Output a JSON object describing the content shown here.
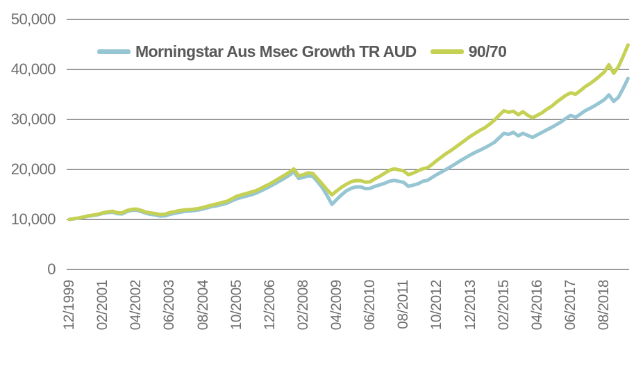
{
  "colors": {
    "background": "#ffffff",
    "gridline": "#787878",
    "axis_label": "#6e6e6e",
    "legend_text": "#595959",
    "series_blue": "#96C5D3",
    "series_green": "#C5D154"
  },
  "chart_data": {
    "type": "line",
    "title": "",
    "xlabel": "",
    "ylabel": "",
    "ylim": [
      0,
      50000
    ],
    "grid": "horizontal",
    "legend_position": "top",
    "y_ticks": [
      0,
      10000,
      20000,
      30000,
      40000,
      50000
    ],
    "y_tick_labels": [
      "0",
      "10,000",
      "20,000",
      "30,000",
      "40,000",
      "50,000"
    ],
    "x_tick_labels": [
      "12/1999",
      "02/2001",
      "04/2002",
      "06/2003",
      "08/2004",
      "10/2005",
      "12/2006",
      "02/2008",
      "04/2009",
      "06/2010",
      "08/2011",
      "10/2012",
      "12/2013",
      "02/2015",
      "04/2016",
      "06/2017",
      "08/2018"
    ],
    "x_tick_interval_months": 14,
    "x_start": "12/1999",
    "x_end": "06/2019",
    "x_step_months": 2,
    "series": [
      {
        "name": "Morningstar Aus Msec Growth TR AUD",
        "color": "#96C5D3",
        "values": [
          10000,
          10140,
          10260,
          10460,
          10660,
          10820,
          10960,
          11220,
          11380,
          11460,
          11160,
          11100,
          11560,
          11820,
          11860,
          11600,
          11260,
          11020,
          10900,
          10660,
          10720,
          11020,
          11220,
          11420,
          11600,
          11660,
          11760,
          11900,
          12100,
          12360,
          12620,
          12760,
          13020,
          13260,
          13720,
          14120,
          14420,
          14660,
          14920,
          15220,
          15660,
          16120,
          16620,
          17120,
          17660,
          18220,
          18820,
          19560,
          18220,
          18420,
          18720,
          18620,
          17520,
          16320,
          14720,
          13020,
          14020,
          14920,
          15720,
          16220,
          16520,
          16520,
          16160,
          16220,
          16620,
          16920,
          17220,
          17620,
          17820,
          17620,
          17420,
          16620,
          16860,
          17120,
          17620,
          17820,
          18420,
          19020,
          19520,
          20060,
          20620,
          21220,
          21820,
          22360,
          22920,
          23420,
          23860,
          24320,
          24860,
          25420,
          26320,
          27220,
          27020,
          27420,
          26720,
          27220,
          26820,
          26420,
          26920,
          27420,
          27920,
          28420,
          28960,
          29520,
          30220,
          30820,
          30420,
          31060,
          31720,
          32220,
          32720,
          33320,
          33920,
          34920,
          33620,
          34420,
          36220,
          38200
        ]
      },
      {
        "name": "90/70",
        "color": "#C5D154",
        "values": [
          10000,
          10180,
          10300,
          10520,
          10740,
          10880,
          11060,
          11320,
          11520,
          11640,
          11380,
          11300,
          11760,
          12020,
          12080,
          11840,
          11480,
          11300,
          11180,
          10980,
          11060,
          11380,
          11560,
          11760,
          11900,
          11960,
          12060,
          12180,
          12400,
          12660,
          12920,
          13120,
          13420,
          13640,
          14120,
          14620,
          14920,
          15160,
          15460,
          15720,
          16160,
          16660,
          17120,
          17680,
          18260,
          18820,
          19420,
          20120,
          18740,
          18960,
          19340,
          19180,
          18120,
          17040,
          15920,
          14920,
          15740,
          16440,
          17040,
          17540,
          17780,
          17760,
          17460,
          17540,
          18140,
          18640,
          19240,
          19820,
          20120,
          19920,
          19720,
          18940,
          19260,
          19720,
          20120,
          20340,
          21040,
          21840,
          22540,
          23240,
          23840,
          24540,
          25240,
          25940,
          26640,
          27240,
          27840,
          28340,
          29040,
          29840,
          30840,
          31740,
          31440,
          31640,
          30940,
          31540,
          30840,
          30340,
          30840,
          31340,
          32040,
          32640,
          33440,
          34140,
          34840,
          35340,
          35040,
          35740,
          36540,
          37140,
          37840,
          38640,
          39440,
          40940,
          39240,
          40540,
          42640,
          44900
        ]
      }
    ]
  }
}
